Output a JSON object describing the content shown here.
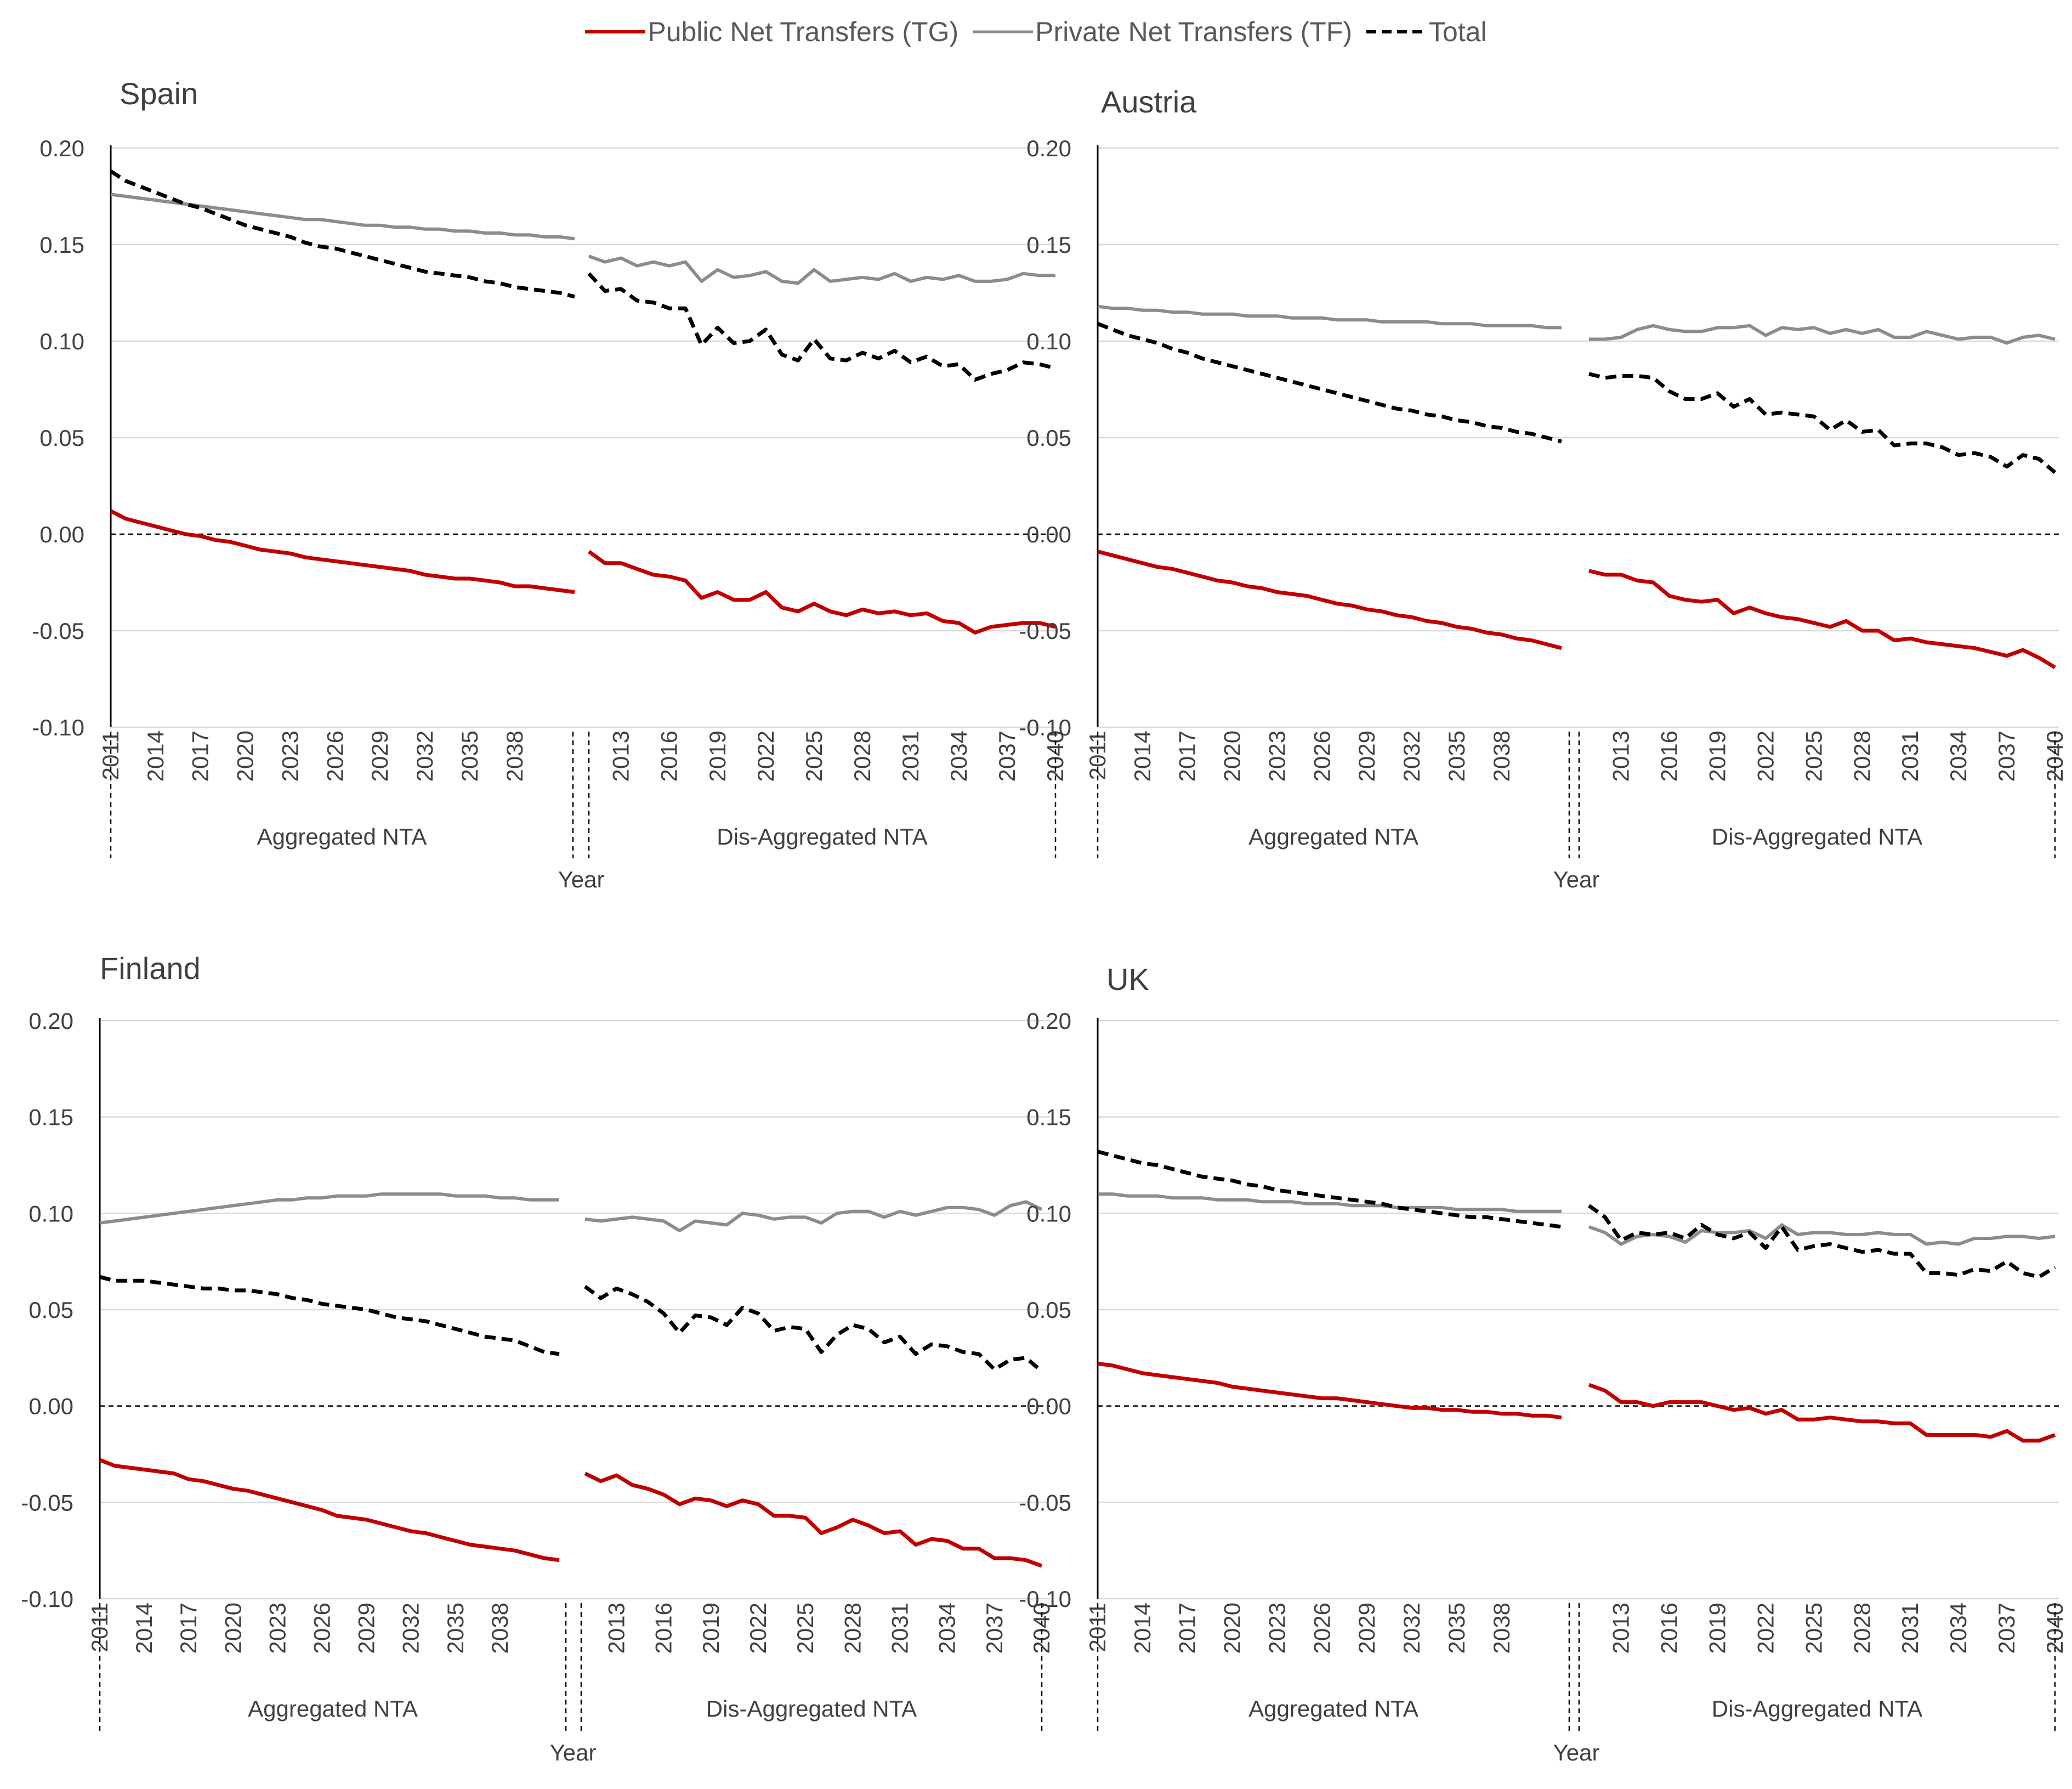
{
  "legend": [
    {
      "name": "Public Net Transfers (TG)",
      "color": "#c00000",
      "dash": "solid",
      "width": 6
    },
    {
      "name": "Private Net Transfers (TF)",
      "color": "#8c8c8c",
      "dash": "solid",
      "width": 5
    },
    {
      "name": "Total",
      "color": "#000000",
      "dash": "dashed",
      "width": 6
    }
  ],
  "common": {
    "yticks": [
      "0.20",
      "0.15",
      "0.10",
      "0.05",
      "0.00",
      "-0.10"
    ],
    "ytick_values": [
      0.2,
      0.15,
      0.1,
      0.05,
      0.0,
      -0.05,
      -0.1
    ],
    "ytick_labels": [
      "0.20",
      "0.15",
      "0.10",
      "0.05",
      "0.00",
      "-0.05",
      "-0.10"
    ],
    "xtick_labels_agg": [
      "2011",
      "2014",
      "2017",
      "2020",
      "2023",
      "2026",
      "2029",
      "2032",
      "2035",
      "2038"
    ],
    "xtick_labels_dis": [
      "2013",
      "2016",
      "2019",
      "2022",
      "2025",
      "2028",
      "2031",
      "2034",
      "2037",
      "2040"
    ],
    "group_labels": [
      "Aggregated NTA",
      "Dis-Aggregated NTA"
    ],
    "xlabel": "Year",
    "ylim": [
      -0.1,
      0.2
    ],
    "grid": true
  },
  "chart_data": [
    {
      "type": "line",
      "title": "Spain",
      "x_aggregated": [
        2011,
        2040
      ],
      "x_disaggregated": [
        2011,
        2040
      ],
      "series": [
        {
          "name": "Public Net Transfers (TG)",
          "aggregated": [
            0.012,
            0.008,
            0.006,
            0.004,
            0.002,
            0.0,
            -0.001,
            -0.003,
            -0.004,
            -0.006,
            -0.008,
            -0.009,
            -0.01,
            -0.012,
            -0.013,
            -0.014,
            -0.015,
            -0.016,
            -0.017,
            -0.018,
            -0.019,
            -0.021,
            -0.022,
            -0.023,
            -0.023,
            -0.024,
            -0.025,
            -0.027,
            -0.027,
            -0.028,
            -0.029,
            -0.03
          ],
          "disaggregated": [
            -0.009,
            -0.015,
            -0.015,
            -0.018,
            -0.021,
            -0.022,
            -0.024,
            -0.033,
            -0.03,
            -0.034,
            -0.034,
            -0.03,
            -0.038,
            -0.04,
            -0.036,
            -0.04,
            -0.042,
            -0.039,
            -0.041,
            -0.04,
            -0.042,
            -0.041,
            -0.045,
            -0.046,
            -0.051,
            -0.048,
            -0.047,
            -0.046,
            -0.046,
            -0.048
          ]
        },
        {
          "name": "Private Net Transfers (TF)",
          "aggregated": [
            0.176,
            0.175,
            0.174,
            0.173,
            0.172,
            0.171,
            0.17,
            0.169,
            0.168,
            0.167,
            0.166,
            0.165,
            0.164,
            0.163,
            0.163,
            0.162,
            0.161,
            0.16,
            0.16,
            0.159,
            0.159,
            0.158,
            0.158,
            0.157,
            0.157,
            0.156,
            0.156,
            0.155,
            0.155,
            0.154,
            0.154,
            0.153
          ],
          "disaggregated": [
            0.144,
            0.141,
            0.143,
            0.139,
            0.141,
            0.139,
            0.141,
            0.131,
            0.137,
            0.133,
            0.134,
            0.136,
            0.131,
            0.13,
            0.137,
            0.131,
            0.132,
            0.133,
            0.132,
            0.135,
            0.131,
            0.133,
            0.132,
            0.134,
            0.131,
            0.131,
            0.132,
            0.135,
            0.134,
            0.134
          ]
        },
        {
          "name": "Total",
          "aggregated": [
            0.188,
            0.183,
            0.18,
            0.177,
            0.174,
            0.171,
            0.169,
            0.166,
            0.163,
            0.16,
            0.158,
            0.156,
            0.154,
            0.151,
            0.149,
            0.148,
            0.146,
            0.144,
            0.142,
            0.14,
            0.138,
            0.136,
            0.135,
            0.134,
            0.133,
            0.131,
            0.13,
            0.128,
            0.127,
            0.126,
            0.125,
            0.123
          ],
          "disaggregated": [
            0.135,
            0.126,
            0.127,
            0.121,
            0.12,
            0.117,
            0.117,
            0.098,
            0.107,
            0.099,
            0.1,
            0.106,
            0.093,
            0.09,
            0.101,
            0.091,
            0.09,
            0.094,
            0.091,
            0.095,
            0.089,
            0.092,
            0.087,
            0.088,
            0.08,
            0.083,
            0.085,
            0.089,
            0.088,
            0.086
          ]
        }
      ]
    },
    {
      "type": "line",
      "title": "Austria",
      "series": [
        {
          "name": "Public Net Transfers (TG)",
          "aggregated": [
            -0.009,
            -0.011,
            -0.013,
            -0.015,
            -0.017,
            -0.018,
            -0.02,
            -0.022,
            -0.024,
            -0.025,
            -0.027,
            -0.028,
            -0.03,
            -0.031,
            -0.032,
            -0.034,
            -0.036,
            -0.037,
            -0.039,
            -0.04,
            -0.042,
            -0.043,
            -0.045,
            -0.046,
            -0.048,
            -0.049,
            -0.051,
            -0.052,
            -0.054,
            -0.055,
            -0.057,
            -0.059
          ],
          "disaggregated": [
            -0.019,
            -0.021,
            -0.021,
            -0.024,
            -0.025,
            -0.032,
            -0.034,
            -0.035,
            -0.034,
            -0.041,
            -0.038,
            -0.041,
            -0.043,
            -0.044,
            -0.046,
            -0.048,
            -0.045,
            -0.05,
            -0.05,
            -0.055,
            -0.054,
            -0.056,
            -0.057,
            -0.058,
            -0.059,
            -0.061,
            -0.063,
            -0.06,
            -0.064,
            -0.069
          ]
        },
        {
          "name": "Private Net Transfers (TF)",
          "aggregated": [
            0.118,
            0.117,
            0.117,
            0.116,
            0.116,
            0.115,
            0.115,
            0.114,
            0.114,
            0.114,
            0.113,
            0.113,
            0.113,
            0.112,
            0.112,
            0.112,
            0.111,
            0.111,
            0.111,
            0.11,
            0.11,
            0.11,
            0.11,
            0.109,
            0.109,
            0.109,
            0.108,
            0.108,
            0.108,
            0.108,
            0.107,
            0.107
          ],
          "disaggregated": [
            0.101,
            0.101,
            0.102,
            0.106,
            0.108,
            0.106,
            0.105,
            0.105,
            0.107,
            0.107,
            0.108,
            0.103,
            0.107,
            0.106,
            0.107,
            0.104,
            0.106,
            0.104,
            0.106,
            0.102,
            0.102,
            0.105,
            0.103,
            0.101,
            0.102,
            0.102,
            0.099,
            0.102,
            0.103,
            0.101
          ]
        },
        {
          "name": "Total",
          "aggregated": [
            0.109,
            0.106,
            0.103,
            0.101,
            0.099,
            0.096,
            0.094,
            0.091,
            0.089,
            0.087,
            0.085,
            0.083,
            0.081,
            0.079,
            0.077,
            0.075,
            0.073,
            0.071,
            0.069,
            0.067,
            0.065,
            0.064,
            0.062,
            0.061,
            0.059,
            0.058,
            0.056,
            0.055,
            0.053,
            0.052,
            0.05,
            0.048
          ],
          "disaggregated": [
            0.083,
            0.081,
            0.082,
            0.082,
            0.081,
            0.074,
            0.07,
            0.07,
            0.073,
            0.066,
            0.07,
            0.062,
            0.063,
            0.062,
            0.061,
            0.054,
            0.059,
            0.053,
            0.054,
            0.046,
            0.047,
            0.047,
            0.045,
            0.041,
            0.042,
            0.04,
            0.035,
            0.041,
            0.039,
            0.032
          ]
        }
      ]
    },
    {
      "type": "line",
      "title": "Finland",
      "series": [
        {
          "name": "Public Net Transfers (TG)",
          "aggregated": [
            -0.028,
            -0.031,
            -0.032,
            -0.033,
            -0.034,
            -0.035,
            -0.038,
            -0.039,
            -0.041,
            -0.043,
            -0.044,
            -0.046,
            -0.048,
            -0.05,
            -0.052,
            -0.054,
            -0.057,
            -0.058,
            -0.059,
            -0.061,
            -0.063,
            -0.065,
            -0.066,
            -0.068,
            -0.07,
            -0.072,
            -0.073,
            -0.074,
            -0.075,
            -0.077,
            -0.079,
            -0.08
          ],
          "disaggregated": [
            -0.035,
            -0.039,
            -0.036,
            -0.041,
            -0.043,
            -0.046,
            -0.051,
            -0.048,
            -0.049,
            -0.052,
            -0.049,
            -0.051,
            -0.057,
            -0.057,
            -0.058,
            -0.066,
            -0.063,
            -0.059,
            -0.062,
            -0.066,
            -0.065,
            -0.072,
            -0.069,
            -0.07,
            -0.074,
            -0.074,
            -0.079,
            -0.079,
            -0.08,
            -0.083
          ]
        },
        {
          "name": "Private Net Transfers (TF)",
          "aggregated": [
            0.095,
            0.096,
            0.097,
            0.098,
            0.099,
            0.1,
            0.101,
            0.102,
            0.103,
            0.104,
            0.105,
            0.106,
            0.107,
            0.107,
            0.108,
            0.108,
            0.109,
            0.109,
            0.109,
            0.11,
            0.11,
            0.11,
            0.11,
            0.11,
            0.109,
            0.109,
            0.109,
            0.108,
            0.108,
            0.107,
            0.107,
            0.107
          ],
          "disaggregated": [
            0.097,
            0.096,
            0.097,
            0.098,
            0.097,
            0.096,
            0.091,
            0.096,
            0.095,
            0.094,
            0.1,
            0.099,
            0.097,
            0.098,
            0.098,
            0.095,
            0.1,
            0.101,
            0.101,
            0.098,
            0.101,
            0.099,
            0.101,
            0.103,
            0.103,
            0.102,
            0.099,
            0.104,
            0.106,
            0.102
          ]
        },
        {
          "name": "Total",
          "aggregated": [
            0.067,
            0.065,
            0.065,
            0.065,
            0.064,
            0.063,
            0.062,
            0.061,
            0.061,
            0.06,
            0.06,
            0.059,
            0.058,
            0.056,
            0.055,
            0.053,
            0.052,
            0.051,
            0.05,
            0.048,
            0.046,
            0.045,
            0.044,
            0.042,
            0.04,
            0.038,
            0.036,
            0.035,
            0.034,
            0.031,
            0.028,
            0.027
          ],
          "disaggregated": [
            0.062,
            0.056,
            0.061,
            0.058,
            0.054,
            0.048,
            0.038,
            0.047,
            0.046,
            0.042,
            0.051,
            0.048,
            0.039,
            0.041,
            0.04,
            0.028,
            0.037,
            0.042,
            0.04,
            0.033,
            0.036,
            0.027,
            0.032,
            0.031,
            0.028,
            0.027,
            0.019,
            0.024,
            0.025,
            0.018
          ]
        }
      ]
    },
    {
      "type": "line",
      "title": "UK",
      "series": [
        {
          "name": "Public Net Transfers (TG)",
          "aggregated": [
            0.022,
            0.021,
            0.019,
            0.017,
            0.016,
            0.015,
            0.014,
            0.013,
            0.012,
            0.01,
            0.009,
            0.008,
            0.007,
            0.006,
            0.005,
            0.004,
            0.004,
            0.003,
            0.002,
            0.001,
            0.0,
            -0.001,
            -0.001,
            -0.002,
            -0.002,
            -0.003,
            -0.003,
            -0.004,
            -0.004,
            -0.005,
            -0.005,
            -0.006
          ],
          "disaggregated": [
            0.011,
            0.008,
            0.002,
            0.002,
            0.0,
            0.002,
            0.002,
            0.002,
            0.0,
            -0.002,
            -0.001,
            -0.004,
            -0.002,
            -0.007,
            -0.007,
            -0.006,
            -0.007,
            -0.008,
            -0.008,
            -0.009,
            -0.009,
            -0.015,
            -0.015,
            -0.015,
            -0.015,
            -0.016,
            -0.013,
            -0.018,
            -0.018,
            -0.015
          ]
        },
        {
          "name": "Private Net Transfers (TF)",
          "aggregated": [
            0.11,
            0.11,
            0.109,
            0.109,
            0.109,
            0.108,
            0.108,
            0.108,
            0.107,
            0.107,
            0.107,
            0.106,
            0.106,
            0.106,
            0.105,
            0.105,
            0.105,
            0.104,
            0.104,
            0.104,
            0.103,
            0.103,
            0.103,
            0.103,
            0.102,
            0.102,
            0.102,
            0.102,
            0.101,
            0.101,
            0.101,
            0.101
          ],
          "disaggregated": [
            0.093,
            0.09,
            0.084,
            0.088,
            0.089,
            0.088,
            0.085,
            0.091,
            0.09,
            0.09,
            0.091,
            0.087,
            0.094,
            0.089,
            0.09,
            0.09,
            0.089,
            0.089,
            0.09,
            0.089,
            0.089,
            0.084,
            0.085,
            0.084,
            0.087,
            0.087,
            0.088,
            0.088,
            0.087,
            0.088
          ]
        },
        {
          "name": "Total",
          "aggregated": [
            0.132,
            0.13,
            0.128,
            0.126,
            0.125,
            0.123,
            0.121,
            0.119,
            0.118,
            0.117,
            0.115,
            0.114,
            0.112,
            0.111,
            0.11,
            0.109,
            0.108,
            0.107,
            0.106,
            0.105,
            0.103,
            0.102,
            0.101,
            0.1,
            0.099,
            0.098,
            0.098,
            0.097,
            0.096,
            0.095,
            0.094,
            0.093
          ],
          "disaggregated": [
            0.104,
            0.098,
            0.086,
            0.09,
            0.089,
            0.09,
            0.087,
            0.094,
            0.089,
            0.087,
            0.09,
            0.082,
            0.093,
            0.081,
            0.083,
            0.084,
            0.082,
            0.08,
            0.081,
            0.079,
            0.079,
            0.069,
            0.069,
            0.068,
            0.071,
            0.07,
            0.075,
            0.069,
            0.067,
            0.072
          ]
        }
      ]
    }
  ]
}
